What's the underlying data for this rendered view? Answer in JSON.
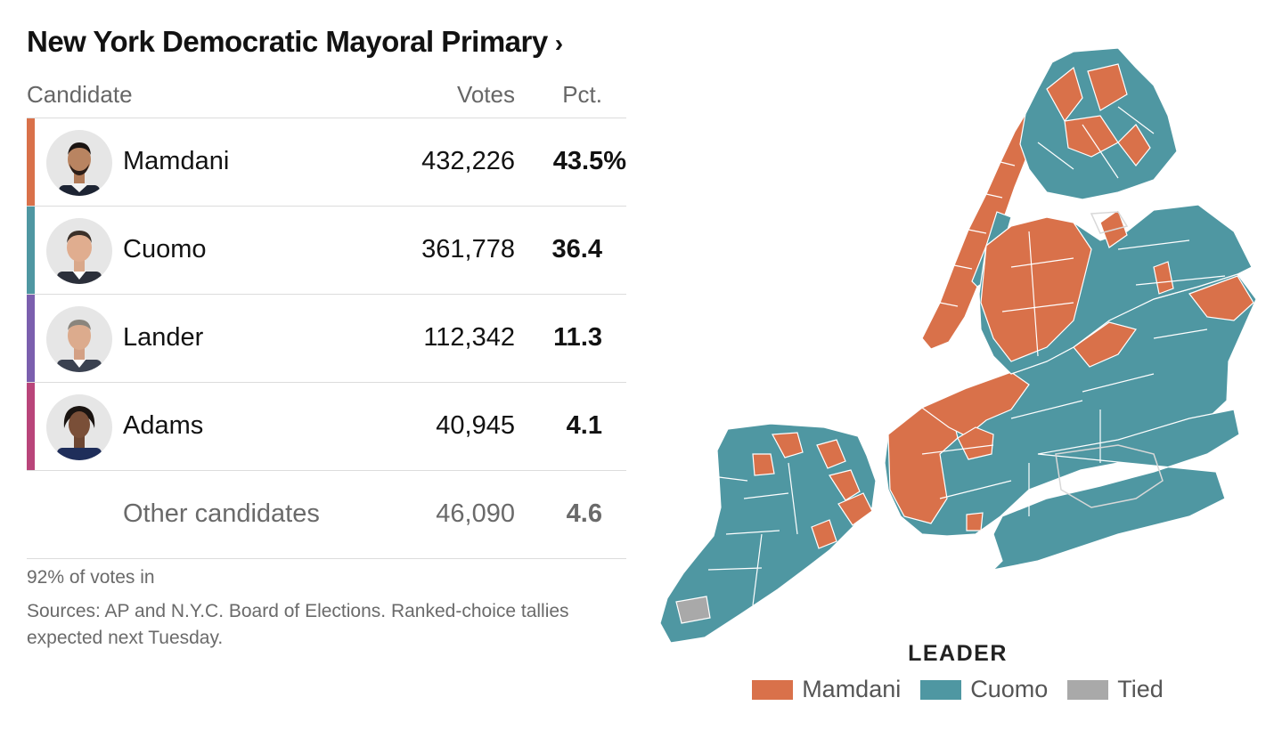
{
  "title": "New York Democratic Mayoral Primary",
  "title_chevron": "›",
  "table": {
    "headers": {
      "candidate": "Candidate",
      "votes": "Votes",
      "pct": "Pct."
    },
    "rows": [
      {
        "name": "Mamdani",
        "votes": "432,226",
        "pct": "43.5%",
        "color": "#d9714a"
      },
      {
        "name": "Cuomo",
        "votes": "361,778",
        "pct": "36.4",
        "color": "#4f97a2"
      },
      {
        "name": "Lander",
        "votes": "112,342",
        "pct": "11.3",
        "color": "#7b5fae"
      },
      {
        "name": "Adams",
        "votes": "40,945",
        "pct": "4.1",
        "color": "#b9457a"
      }
    ],
    "other": {
      "name": "Other candidates",
      "votes": "46,090",
      "pct": "4.6"
    }
  },
  "footnote": {
    "reporting": "92% of votes in",
    "sources": "Sources: AP and N.Y.C. Board of Elections. Ranked-choice tallies expected next Tuesday."
  },
  "legend": {
    "title": "LEADER",
    "items": [
      {
        "label": "Mamdani",
        "color": "#d9714a"
      },
      {
        "label": "Cuomo",
        "color": "#4f97a2"
      },
      {
        "label": "Tied",
        "color": "#a9a9a9"
      }
    ]
  },
  "colors": {
    "mamdani": "#d9714a",
    "cuomo": "#4f97a2",
    "tied": "#a9a9a9",
    "border": "#d8d8d8"
  }
}
